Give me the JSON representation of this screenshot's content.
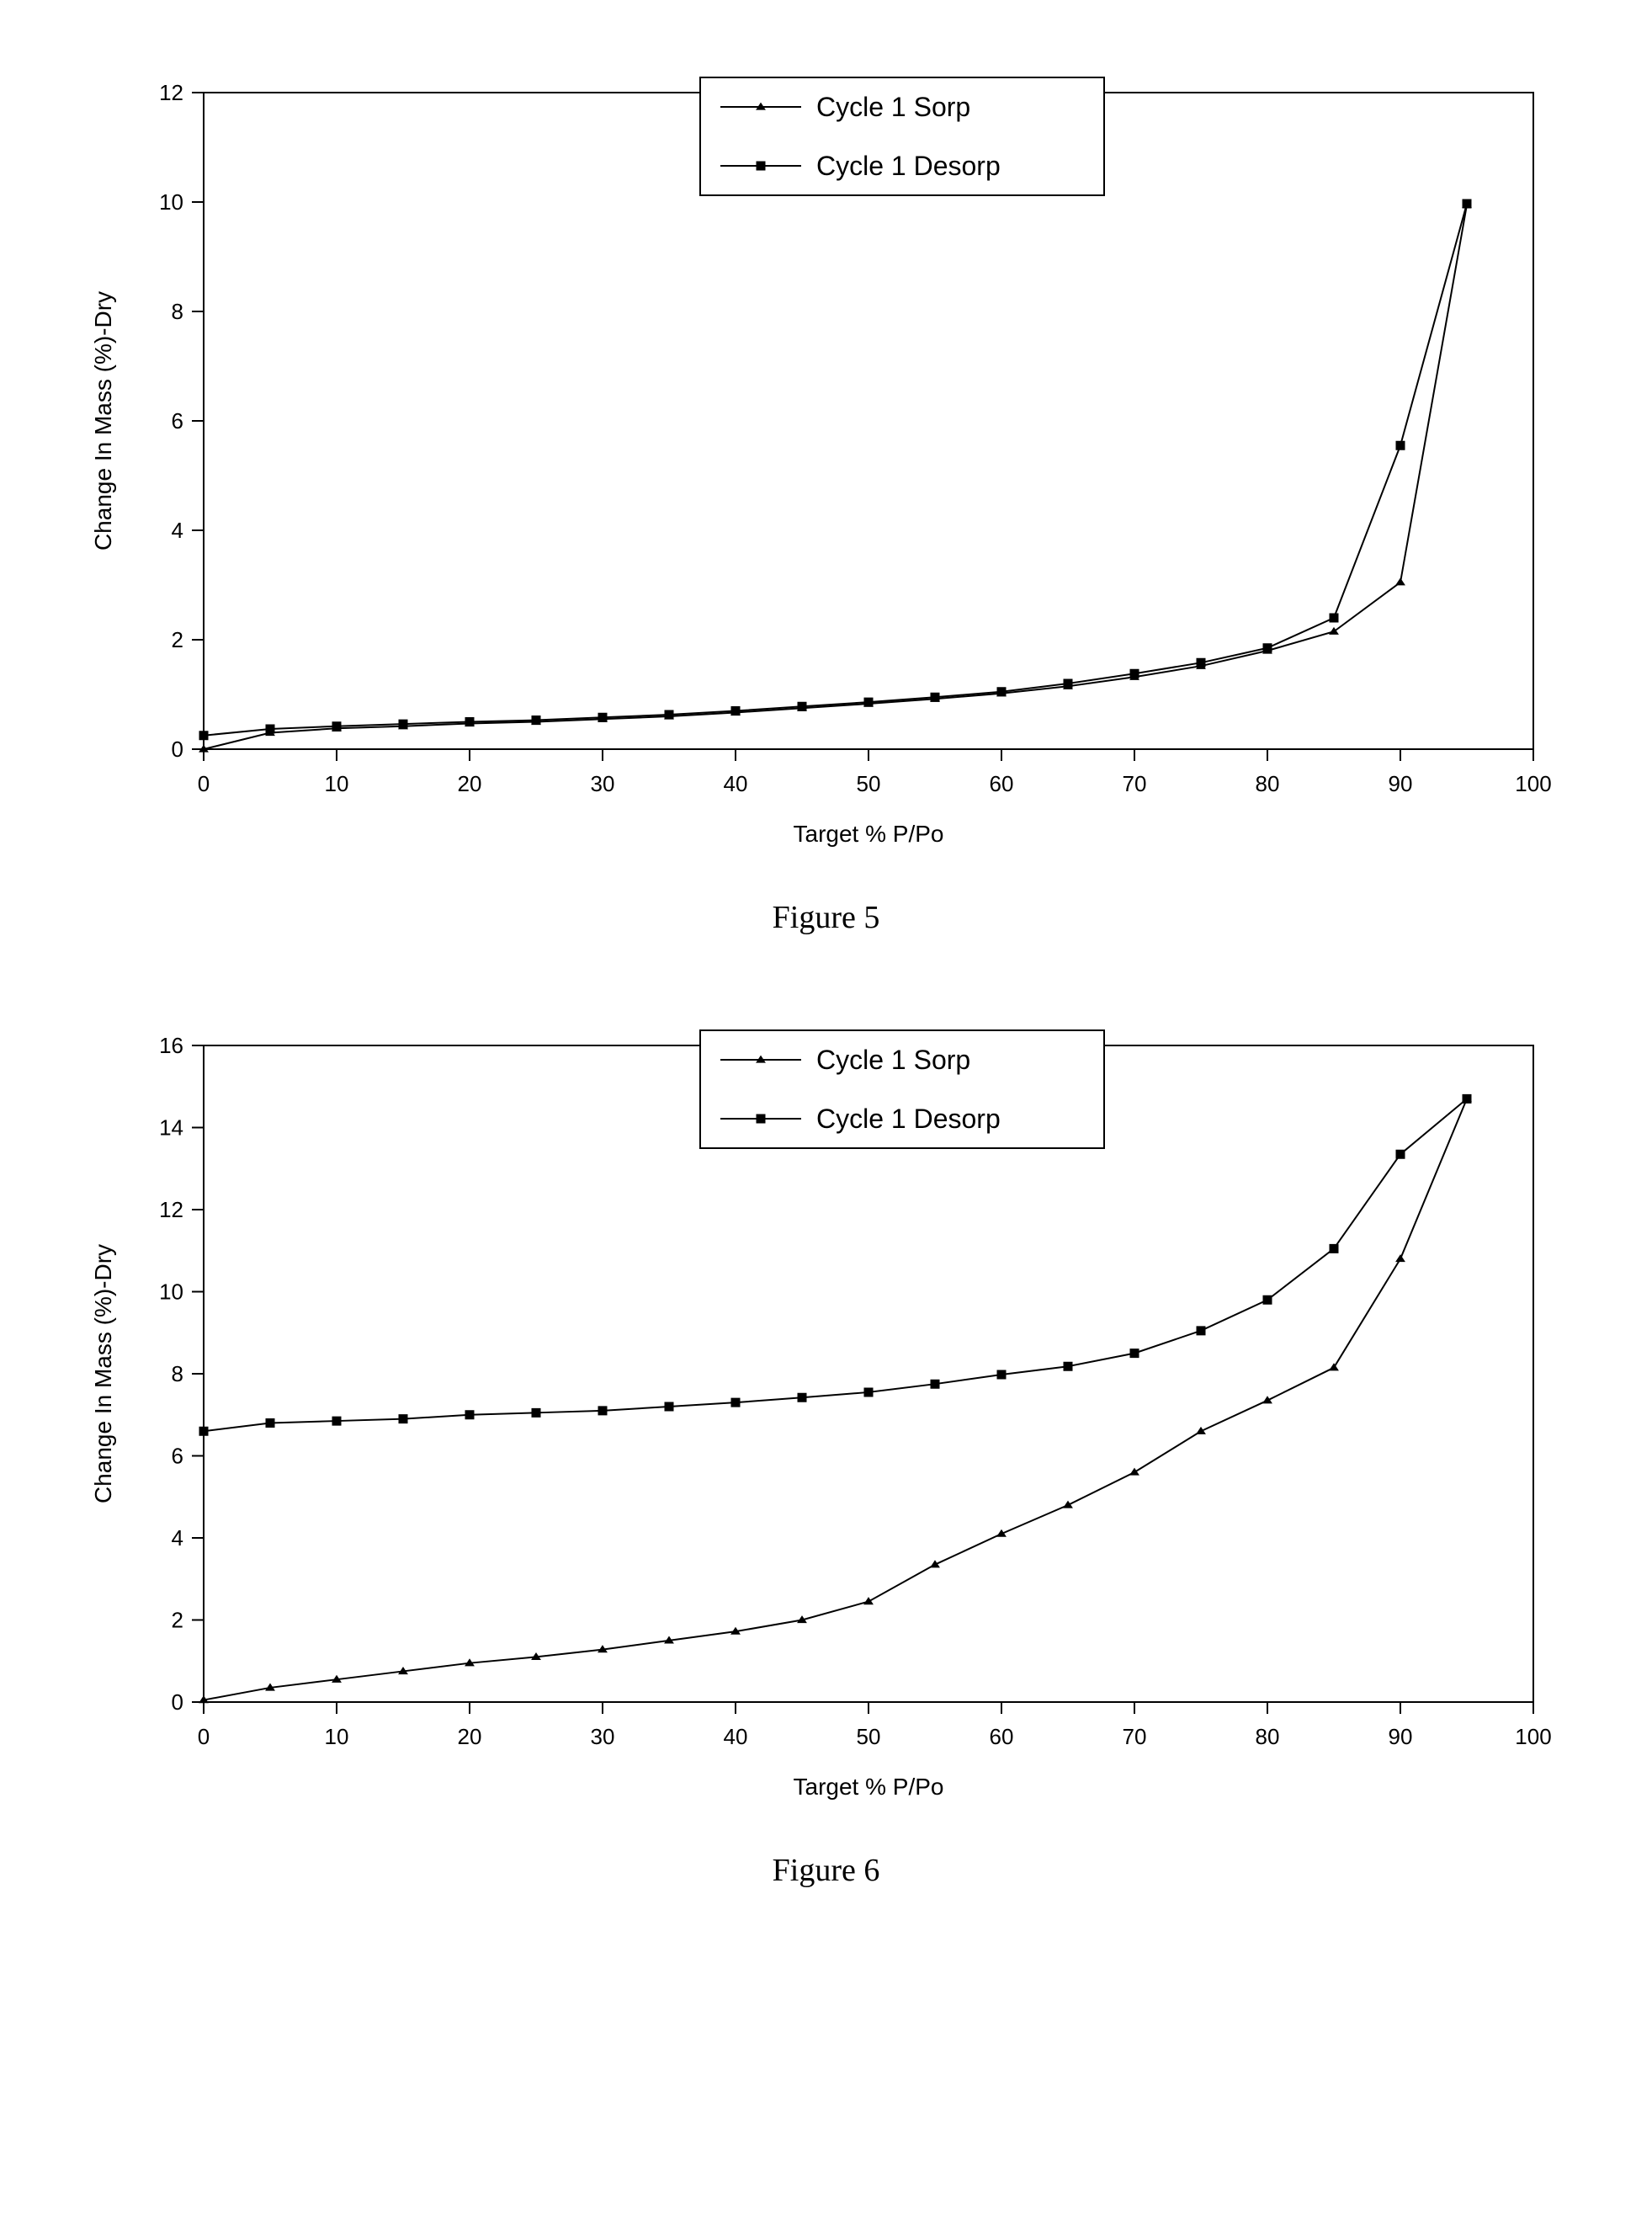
{
  "background_color": "#ffffff",
  "figures": {
    "fig5": {
      "type": "line",
      "caption": "Figure 5",
      "xlabel": "Target % P/Po",
      "ylabel": "Change In Mass (%)-Dry",
      "xlabel_fontsize": 28,
      "ylabel_fontsize": 28,
      "tick_fontsize": 26,
      "legend_fontsize": 32,
      "legend_position": "top-center",
      "axis_color": "#000000",
      "tick_color": "#000000",
      "line_color": "#000000",
      "line_width": 2,
      "border_width": 2,
      "plot_border": true,
      "xlim": [
        0,
        100
      ],
      "ylim": [
        0,
        12
      ],
      "xtick_step": 10,
      "ytick_step": 2,
      "xtick_labels": [
        "0",
        "10",
        "20",
        "30",
        "40",
        "50",
        "60",
        "70",
        "80",
        "90",
        "100"
      ],
      "ytick_labels": [
        "0",
        "2",
        "4",
        "6",
        "8",
        "10",
        "12"
      ],
      "series": [
        {
          "name": "Cycle 1 Sorp",
          "marker": "triangle",
          "marker_size": 10,
          "marker_color": "#000000",
          "data": [
            {
              "x": 0,
              "y": 0.0
            },
            {
              "x": 5,
              "y": 0.3
            },
            {
              "x": 10,
              "y": 0.38
            },
            {
              "x": 15,
              "y": 0.42
            },
            {
              "x": 20,
              "y": 0.47
            },
            {
              "x": 25,
              "y": 0.5
            },
            {
              "x": 30,
              "y": 0.55
            },
            {
              "x": 35,
              "y": 0.6
            },
            {
              "x": 40,
              "y": 0.67
            },
            {
              "x": 45,
              "y": 0.75
            },
            {
              "x": 50,
              "y": 0.83
            },
            {
              "x": 55,
              "y": 0.92
            },
            {
              "x": 60,
              "y": 1.02
            },
            {
              "x": 65,
              "y": 1.15
            },
            {
              "x": 70,
              "y": 1.32
            },
            {
              "x": 75,
              "y": 1.52
            },
            {
              "x": 80,
              "y": 1.8
            },
            {
              "x": 85,
              "y": 2.15
            },
            {
              "x": 90,
              "y": 3.05
            },
            {
              "x": 95,
              "y": 9.95
            }
          ]
        },
        {
          "name": "Cycle 1 Desorp",
          "marker": "square",
          "marker_size": 10,
          "marker_color": "#000000",
          "data": [
            {
              "x": 0,
              "y": 0.25
            },
            {
              "x": 5,
              "y": 0.37
            },
            {
              "x": 10,
              "y": 0.42
            },
            {
              "x": 15,
              "y": 0.46
            },
            {
              "x": 20,
              "y": 0.5
            },
            {
              "x": 25,
              "y": 0.53
            },
            {
              "x": 30,
              "y": 0.58
            },
            {
              "x": 35,
              "y": 0.63
            },
            {
              "x": 40,
              "y": 0.7
            },
            {
              "x": 45,
              "y": 0.78
            },
            {
              "x": 50,
              "y": 0.86
            },
            {
              "x": 55,
              "y": 0.95
            },
            {
              "x": 60,
              "y": 1.05
            },
            {
              "x": 65,
              "y": 1.2
            },
            {
              "x": 70,
              "y": 1.38
            },
            {
              "x": 75,
              "y": 1.58
            },
            {
              "x": 80,
              "y": 1.85
            },
            {
              "x": 85,
              "y": 2.4
            },
            {
              "x": 90,
              "y": 5.55
            },
            {
              "x": 95,
              "y": 9.97
            }
          ]
        }
      ]
    },
    "fig6": {
      "type": "line",
      "caption": "Figure 6",
      "xlabel": "Target % P/Po",
      "ylabel": "Change In Mass (%)-Dry",
      "xlabel_fontsize": 28,
      "ylabel_fontsize": 28,
      "tick_fontsize": 26,
      "legend_fontsize": 32,
      "legend_position": "top-center",
      "axis_color": "#000000",
      "tick_color": "#000000",
      "line_color": "#000000",
      "line_width": 2,
      "border_width": 2,
      "plot_border": true,
      "xlim": [
        0,
        100
      ],
      "ylim": [
        0,
        16
      ],
      "xtick_step": 10,
      "ytick_step": 2,
      "xtick_labels": [
        "0",
        "10",
        "20",
        "30",
        "40",
        "50",
        "60",
        "70",
        "80",
        "90",
        "100"
      ],
      "ytick_labels": [
        "0",
        "2",
        "4",
        "6",
        "8",
        "10",
        "12",
        "14",
        "16"
      ],
      "series": [
        {
          "name": "Cycle 1 Sorp",
          "marker": "triangle",
          "marker_size": 10,
          "marker_color": "#000000",
          "data": [
            {
              "x": 0,
              "y": 0.05
            },
            {
              "x": 5,
              "y": 0.35
            },
            {
              "x": 10,
              "y": 0.55
            },
            {
              "x": 15,
              "y": 0.75
            },
            {
              "x": 20,
              "y": 0.95
            },
            {
              "x": 25,
              "y": 1.1
            },
            {
              "x": 30,
              "y": 1.28
            },
            {
              "x": 35,
              "y": 1.5
            },
            {
              "x": 40,
              "y": 1.72
            },
            {
              "x": 45,
              "y": 2.0
            },
            {
              "x": 50,
              "y": 2.45
            },
            {
              "x": 55,
              "y": 3.35
            },
            {
              "x": 60,
              "y": 4.1
            },
            {
              "x": 65,
              "y": 4.8
            },
            {
              "x": 70,
              "y": 5.6
            },
            {
              "x": 75,
              "y": 6.6
            },
            {
              "x": 80,
              "y": 7.35
            },
            {
              "x": 85,
              "y": 8.15
            },
            {
              "x": 90,
              "y": 10.8
            },
            {
              "x": 95,
              "y": 14.7
            }
          ]
        },
        {
          "name": "Cycle 1 Desorp",
          "marker": "square",
          "marker_size": 10,
          "marker_color": "#000000",
          "data": [
            {
              "x": 0,
              "y": 6.6
            },
            {
              "x": 5,
              "y": 6.8
            },
            {
              "x": 10,
              "y": 6.85
            },
            {
              "x": 15,
              "y": 6.9
            },
            {
              "x": 20,
              "y": 7.0
            },
            {
              "x": 25,
              "y": 7.05
            },
            {
              "x": 30,
              "y": 7.1
            },
            {
              "x": 35,
              "y": 7.2
            },
            {
              "x": 40,
              "y": 7.3
            },
            {
              "x": 45,
              "y": 7.42
            },
            {
              "x": 50,
              "y": 7.55
            },
            {
              "x": 55,
              "y": 7.75
            },
            {
              "x": 60,
              "y": 7.98
            },
            {
              "x": 65,
              "y": 8.18
            },
            {
              "x": 70,
              "y": 8.5
            },
            {
              "x": 75,
              "y": 9.05
            },
            {
              "x": 80,
              "y": 9.8
            },
            {
              "x": 85,
              "y": 11.05
            },
            {
              "x": 90,
              "y": 13.35
            },
            {
              "x": 95,
              "y": 14.7
            }
          ]
        }
      ]
    }
  }
}
